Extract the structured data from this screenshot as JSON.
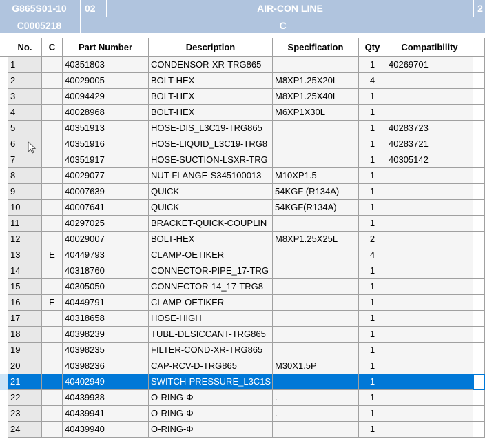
{
  "header": {
    "code": "G865S01-10",
    "section": "02",
    "title": "AIR-CON LINE",
    "extra": "2",
    "sub_code": "C0005218",
    "sub_value": "C"
  },
  "columns": [
    "No.",
    "C",
    "Part Number",
    "Description",
    "Specification",
    "Qty",
    "Compatibility"
  ],
  "selected_row": 21,
  "rows": [
    [
      "1",
      "",
      "40351803",
      "CONDENSOR-XR-TRG865",
      "",
      "1",
      "40269701"
    ],
    [
      "2",
      "",
      "40029005",
      "BOLT-HEX",
      "M8XP1.25X20L",
      "4",
      ""
    ],
    [
      "3",
      "",
      "40094429",
      "BOLT-HEX",
      "M8XP1.25X40L",
      "1",
      ""
    ],
    [
      "4",
      "",
      "40028968",
      "BOLT-HEX",
      "M6XP1X30L",
      "1",
      ""
    ],
    [
      "5",
      "",
      "40351913",
      "HOSE-DIS_L3C19-TRG865",
      "",
      "1",
      "40283723"
    ],
    [
      "6",
      "",
      "40351916",
      "HOSE-LIQUID_L3C19-TRG8",
      "",
      "1",
      "40283721"
    ],
    [
      "7",
      "",
      "40351917",
      "HOSE-SUCTION-LSXR-TRG",
      "",
      "1",
      "40305142"
    ],
    [
      "8",
      "",
      "40029077",
      "NUT-FLANGE-S345100013",
      "M10XP1.5",
      "1",
      ""
    ],
    [
      "9",
      "",
      "40007639",
      "QUICK",
      "54KGF (R134A)",
      "1",
      ""
    ],
    [
      "10",
      "",
      "40007641",
      "QUICK",
      "54KGF(R134A)",
      "1",
      ""
    ],
    [
      "11",
      "",
      "40297025",
      "BRACKET-QUICK-COUPLIN",
      "",
      "1",
      ""
    ],
    [
      "12",
      "",
      "40029007",
      "BOLT-HEX",
      "M8XP1.25X25L",
      "2",
      ""
    ],
    [
      "13",
      "E",
      "40449793",
      "CLAMP-OETIKER",
      "",
      "4",
      ""
    ],
    [
      "14",
      "",
      "40318760",
      "CONNECTOR-PIPE_17-TRG",
      "",
      "1",
      ""
    ],
    [
      "15",
      "",
      "40305050",
      "CONNECTOR-14_17-TRG8",
      "",
      "1",
      ""
    ],
    [
      "16",
      "E",
      "40449791",
      "CLAMP-OETIKER",
      "",
      "1",
      ""
    ],
    [
      "17",
      "",
      "40318658",
      "HOSE-HIGH",
      "",
      "1",
      ""
    ],
    [
      "18",
      "",
      "40398239",
      "TUBE-DESICCANT-TRG865",
      "",
      "1",
      ""
    ],
    [
      "19",
      "",
      "40398235",
      "FILTER-COND-XR-TRG865",
      "",
      "1",
      ""
    ],
    [
      "20",
      "",
      "40398236",
      "CAP-RCV-D-TRG865",
      "M30X1.5P",
      "1",
      ""
    ],
    [
      "21",
      "",
      "40402949",
      "SWITCH-PRESSURE_L3C1S",
      "",
      "1",
      ""
    ],
    [
      "22",
      "",
      "40439938",
      "O-RING-Φ",
      ".",
      "1",
      ""
    ],
    [
      "23",
      "",
      "40439941",
      "O-RING-Φ",
      ".",
      "1",
      ""
    ],
    [
      "24",
      "",
      "40439940",
      "O-RING-Φ",
      "",
      "1",
      ""
    ]
  ]
}
